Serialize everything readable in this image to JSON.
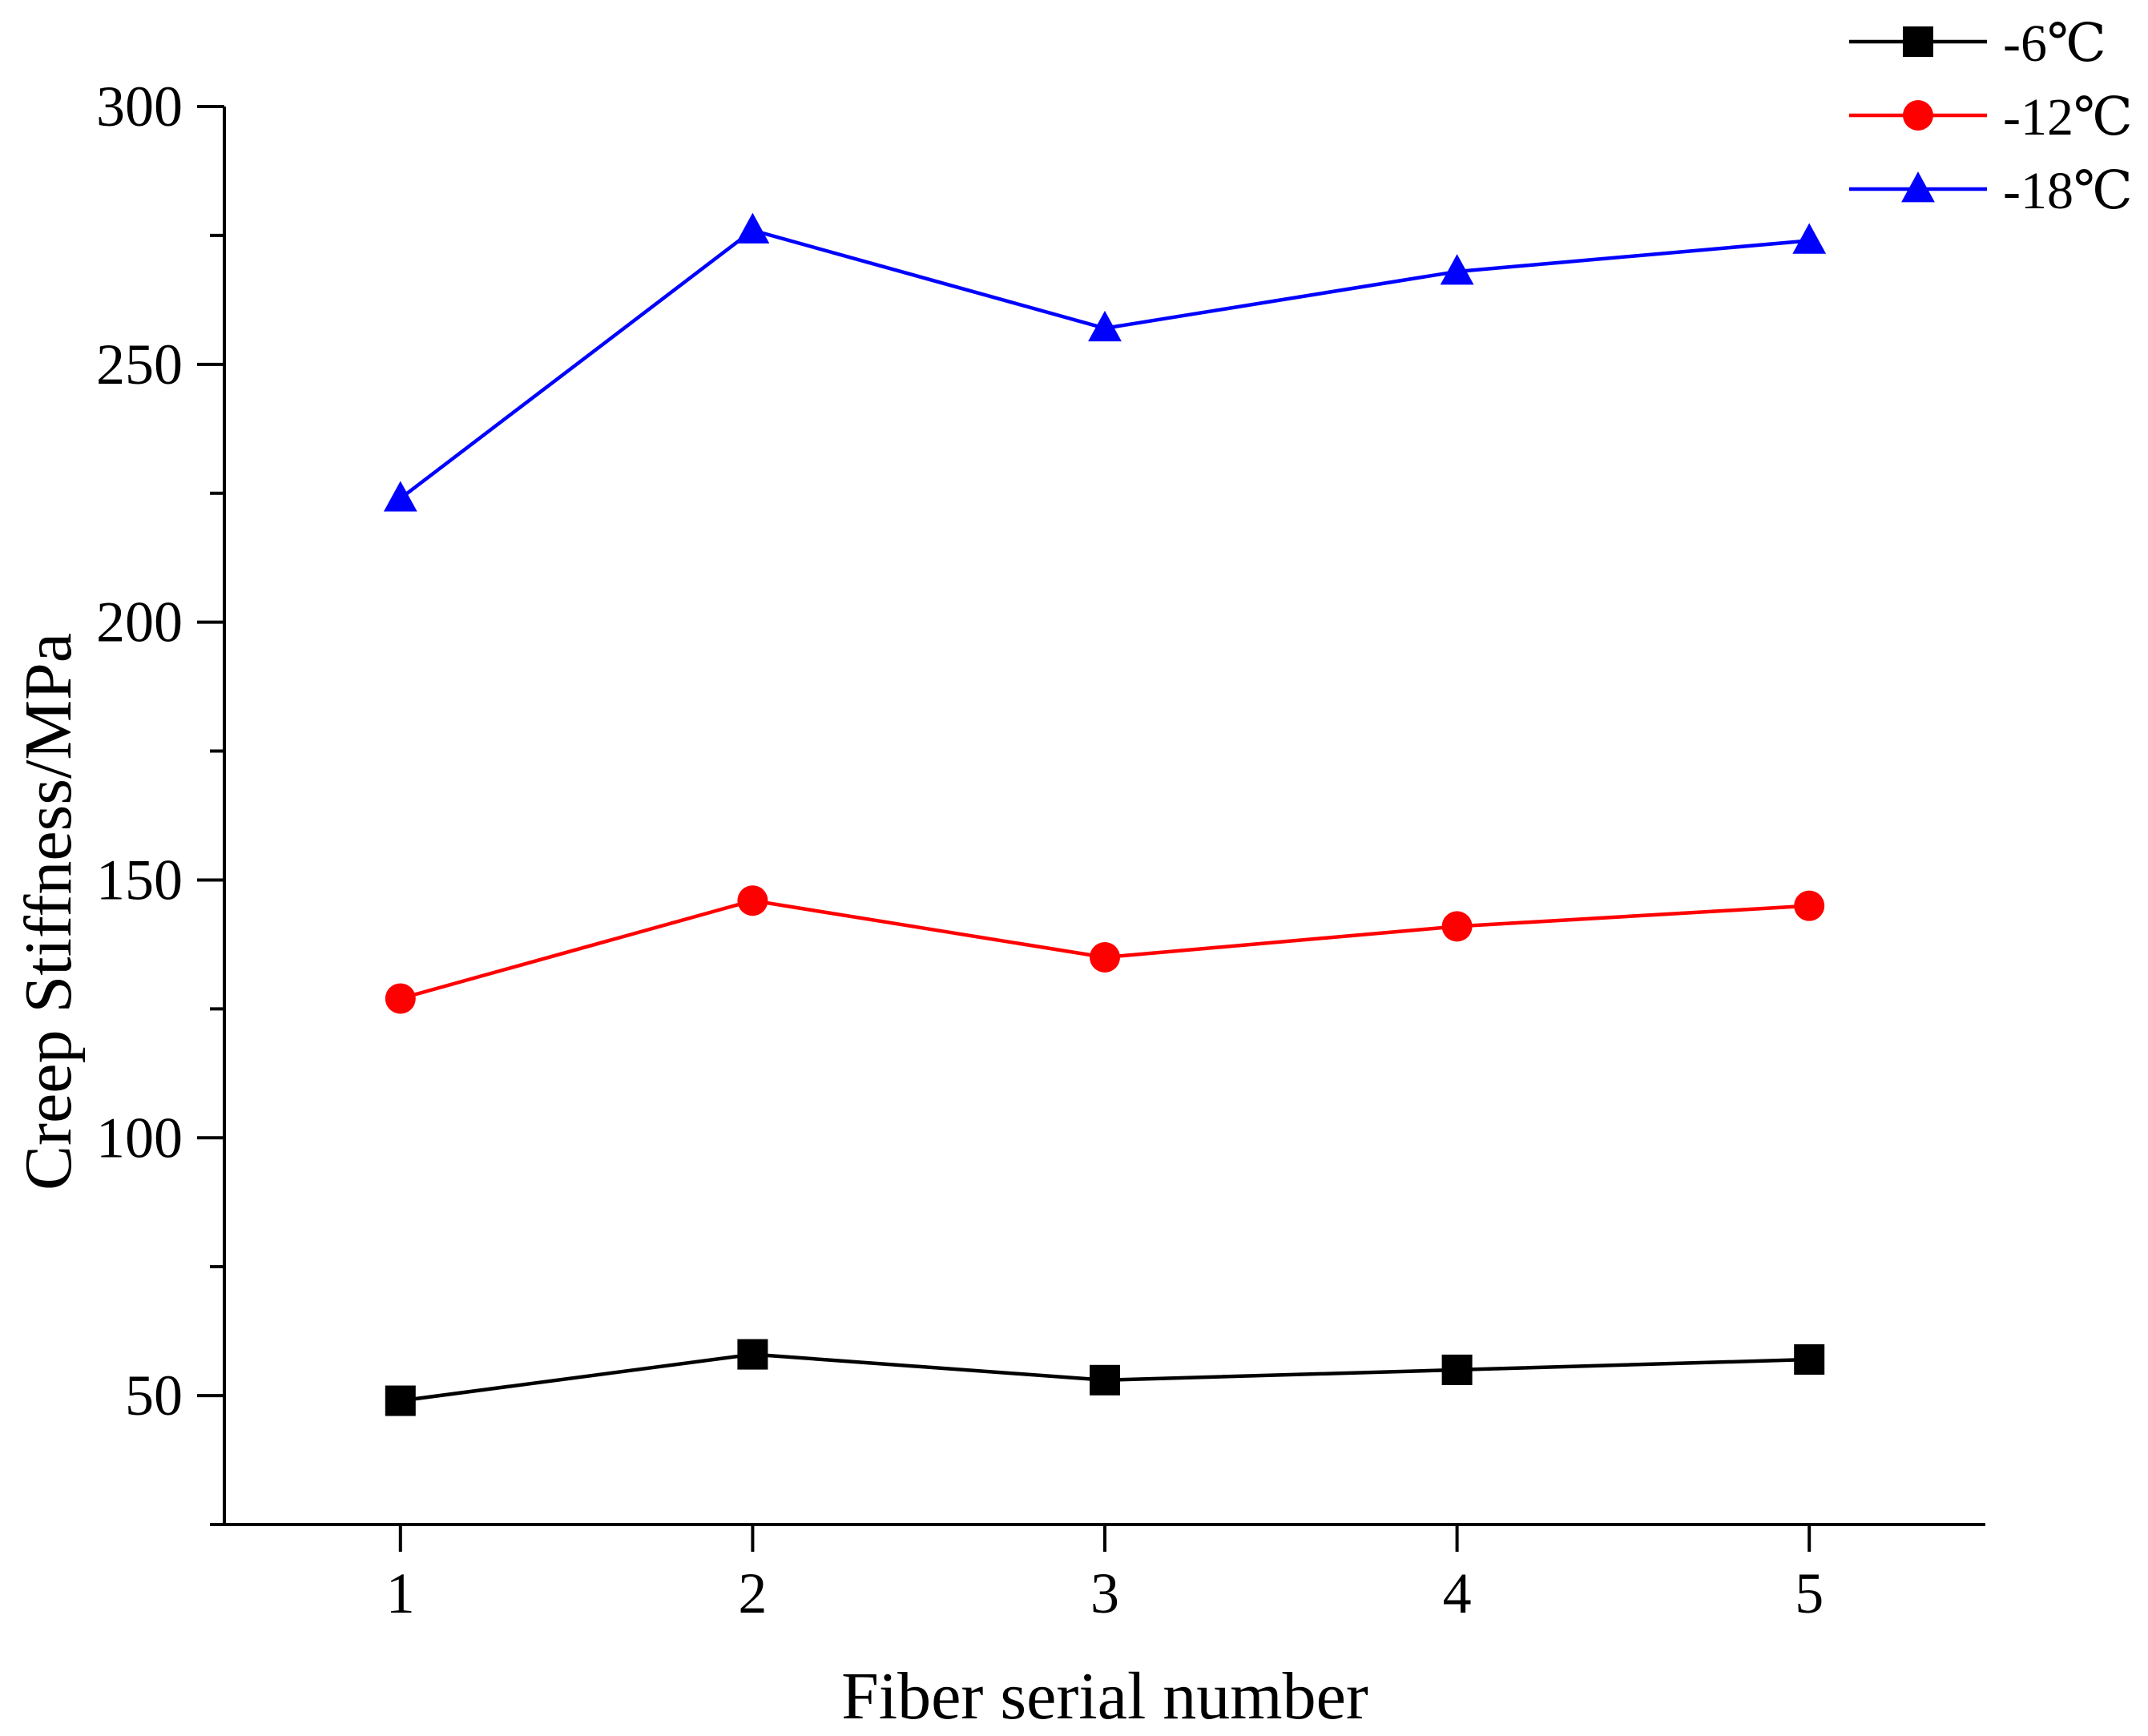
{
  "chart_data": {
    "type": "line",
    "xlabel": "Fiber serial number",
    "ylabel": "Creep Stiffness/MPa",
    "x": [
      1,
      2,
      3,
      4,
      5
    ],
    "xlim": [
      0.5,
      5.5
    ],
    "ylim": [
      25,
      300
    ],
    "yticks": [
      50,
      100,
      150,
      200,
      250,
      300
    ],
    "y_minor_step": 25,
    "grid": false,
    "legend_position": "top-right",
    "series": [
      {
        "name": "-6℃",
        "marker": "square",
        "color": "#000000",
        "values": [
          49,
          58,
          53,
          55,
          57
        ]
      },
      {
        "name": "-12℃",
        "marker": "circle",
        "color": "#ff0000",
        "values": [
          127,
          146,
          135,
          141,
          145
        ]
      },
      {
        "name": "-18℃",
        "marker": "triangle",
        "color": "#0000ff",
        "values": [
          224,
          276,
          257,
          268,
          274
        ]
      }
    ]
  }
}
